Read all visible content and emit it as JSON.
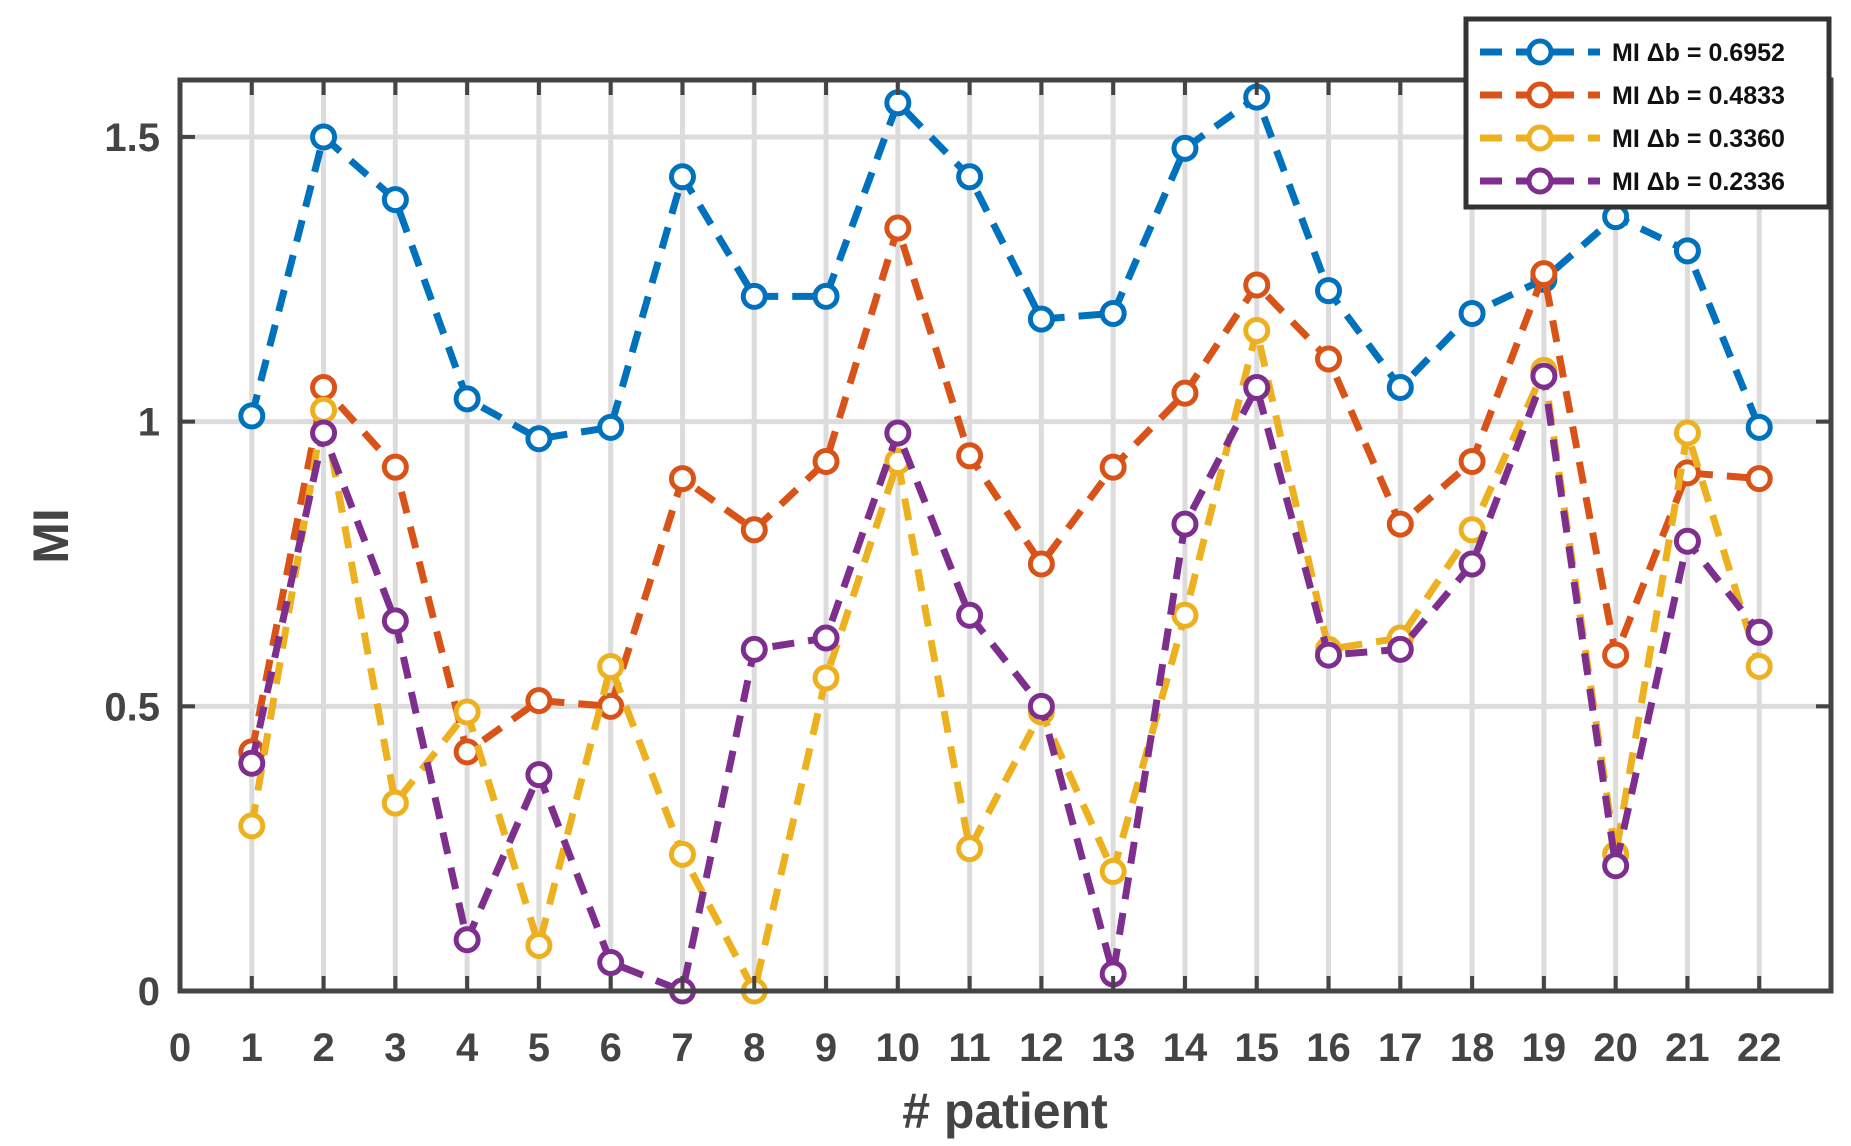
{
  "chart_data": {
    "type": "line",
    "xlabel": "# patient",
    "ylabel": "MI",
    "xlim": [
      0,
      23
    ],
    "ylim": [
      0,
      1.6
    ],
    "x_ticks": [
      0,
      1,
      2,
      3,
      4,
      5,
      6,
      7,
      8,
      9,
      10,
      11,
      12,
      13,
      14,
      15,
      16,
      17,
      18,
      19,
      20,
      21,
      22
    ],
    "y_ticks": [
      0,
      0.5,
      1,
      1.5
    ],
    "y_tick_labels": [
      "0",
      "0.5",
      "1",
      "1.5"
    ],
    "grid": true,
    "legend_position": "top-right",
    "x": [
      1,
      2,
      3,
      4,
      5,
      6,
      7,
      8,
      9,
      10,
      11,
      12,
      13,
      14,
      15,
      16,
      17,
      18,
      19,
      20,
      21,
      22
    ],
    "series": [
      {
        "name": "MI Δb = 0.6952",
        "color": "#0072BD",
        "values": [
          1.01,
          1.5,
          1.39,
          1.04,
          0.97,
          0.99,
          1.43,
          1.22,
          1.22,
          1.56,
          1.43,
          1.18,
          1.19,
          1.48,
          1.57,
          1.23,
          1.06,
          1.19,
          1.25,
          1.36,
          1.3,
          0.99
        ]
      },
      {
        "name": "MI Δb = 0.4833",
        "color": "#D95319",
        "values": [
          0.42,
          1.06,
          0.92,
          0.42,
          0.51,
          0.5,
          0.9,
          0.81,
          0.93,
          1.34,
          0.94,
          0.75,
          0.92,
          1.05,
          1.24,
          1.11,
          0.82,
          0.93,
          1.26,
          0.59,
          0.91,
          0.9
        ]
      },
      {
        "name": "MI Δb = 0.3360",
        "color": "#EDB120",
        "values": [
          0.29,
          1.02,
          0.33,
          0.49,
          0.08,
          0.57,
          0.24,
          0.0,
          0.55,
          0.93,
          0.25,
          0.49,
          0.21,
          0.66,
          1.16,
          0.6,
          0.62,
          0.81,
          1.09,
          0.24,
          0.98,
          0.57
        ]
      },
      {
        "name": "MI Δb = 0.2336",
        "color": "#7E2F8E",
        "values": [
          0.4,
          0.98,
          0.65,
          0.09,
          0.38,
          0.05,
          0.0,
          0.6,
          0.62,
          0.98,
          0.66,
          0.5,
          0.03,
          0.82,
          1.06,
          0.59,
          0.6,
          0.75,
          1.08,
          0.22,
          0.79,
          0.63
        ]
      }
    ]
  }
}
